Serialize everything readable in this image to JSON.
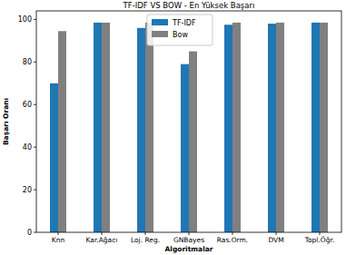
{
  "chart_data": {
    "type": "bar",
    "title": "TF-IDF VS BOW - En Yüksek Başarı",
    "x_label": "Algoritmalar",
    "y_label": "Başarı Oranı",
    "categories": [
      "Knn",
      "Kar.Ağacı",
      "Loj. Reg.",
      "GNBayes",
      "Ras.Orm.",
      "DVM",
      "Topl.Öğr."
    ],
    "series": [
      {
        "name": "TF-IDF",
        "color": "#1f77b4",
        "values": [
          70,
          98.5,
          96,
          79,
          97.5,
          98,
          98.5
        ]
      },
      {
        "name": "Bow",
        "color": "#808080",
        "values": [
          94.5,
          98.5,
          98.5,
          85,
          98.5,
          98.5,
          98.5
        ]
      }
    ],
    "ylim": [
      0,
      104
    ],
    "yticks": [
      0,
      20,
      40,
      60,
      80,
      100
    ],
    "grid": false,
    "legend": "upper center"
  }
}
